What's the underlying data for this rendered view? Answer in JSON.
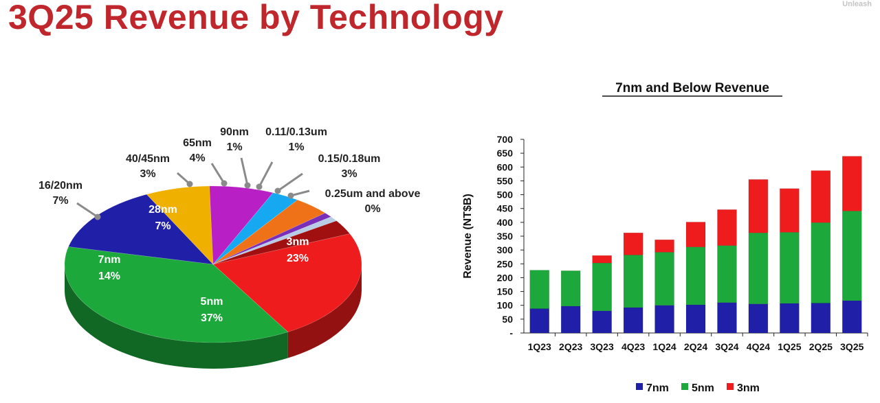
{
  "page": {
    "title": "3Q25 Revenue by Technology",
    "watermark": "Unleash"
  },
  "colors": {
    "title": "#c0272d",
    "7nm": "#1f1fa8",
    "5nm": "#1ca83a",
    "3nm": "#ee1c1c"
  },
  "chart_data": [
    {
      "type": "pie",
      "title": "",
      "slices": [
        {
          "label": "3nm",
          "value": 23,
          "value_label": "23%",
          "color": "#ee1c1c"
        },
        {
          "label": "5nm",
          "value": 37,
          "value_label": "37%",
          "color": "#1ca83a"
        },
        {
          "label": "7nm",
          "value": 14,
          "value_label": "14%",
          "color": "#1f1fa8"
        },
        {
          "label": "16/20nm",
          "value": 7,
          "value_label": "7%",
          "color": "#f0b000"
        },
        {
          "label": "28nm",
          "value": 7,
          "value_label": "7%",
          "color": "#b81fc4"
        },
        {
          "label": "40/45nm",
          "value": 3,
          "value_label": "3%",
          "color": "#16a8f0"
        },
        {
          "label": "65nm",
          "value": 4,
          "value_label": "4%",
          "color": "#f07218"
        },
        {
          "label": "90nm",
          "value": 1,
          "value_label": "1%",
          "color": "#7a2fb8"
        },
        {
          "label": "0.11/0.13um",
          "value": 1,
          "value_label": "1%",
          "color": "#b8cce6"
        },
        {
          "label": "0.15/0.18um",
          "value": 3,
          "value_label": "3%",
          "color": "#a01010"
        },
        {
          "label": "0.25um and above",
          "value": 0,
          "value_label": "0%",
          "color": "#6e6e6e"
        }
      ]
    },
    {
      "type": "bar",
      "stacked": true,
      "title": "7nm and Below Revenue",
      "xlabel": "",
      "ylabel": "Revenue (NT$B)",
      "ylim": [
        0,
        700
      ],
      "yticks": [
        "-",
        "50",
        "100",
        "150",
        "200",
        "250",
        "300",
        "350",
        "400",
        "450",
        "500",
        "550",
        "600",
        "650",
        "700"
      ],
      "grid": false,
      "legend_position": "bottom",
      "categories": [
        "1Q23",
        "2Q23",
        "3Q23",
        "4Q23",
        "1Q24",
        "2Q24",
        "3Q24",
        "4Q24",
        "1Q25",
        "2Q25",
        "3Q25"
      ],
      "series": [
        {
          "name": "7nm",
          "color": "#1f1fa8",
          "values": [
            88,
            97,
            80,
            92,
            100,
            102,
            110,
            105,
            107,
            108,
            117
          ]
        },
        {
          "name": "5nm",
          "color": "#1ca83a",
          "values": [
            139,
            128,
            173,
            190,
            192,
            209,
            206,
            257,
            257,
            291,
            324
          ]
        },
        {
          "name": "3nm",
          "color": "#ee1c1c",
          "values": [
            0,
            0,
            27,
            80,
            45,
            90,
            130,
            193,
            158,
            188,
            198
          ]
        }
      ]
    }
  ]
}
